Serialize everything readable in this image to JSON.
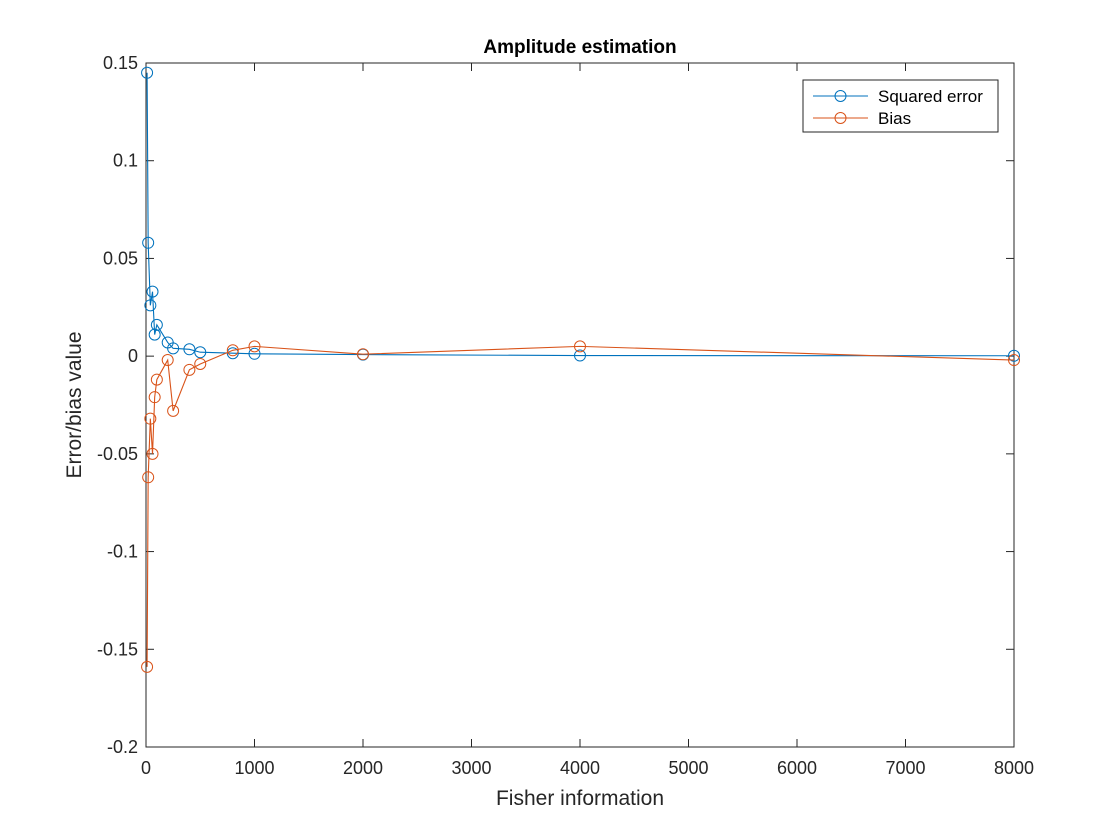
{
  "chart_data": {
    "type": "line",
    "title": "Amplitude estimation",
    "xlabel": "Fisher information",
    "ylabel": "Error/bias value",
    "xlim": [
      0,
      8000
    ],
    "ylim": [
      -0.2,
      0.15
    ],
    "xticks": [
      0,
      1000,
      2000,
      3000,
      4000,
      5000,
      6000,
      7000,
      8000
    ],
    "xtick_labels": [
      "0",
      "1000",
      "2000",
      "3000",
      "4000",
      "5000",
      "6000",
      "7000",
      "8000"
    ],
    "yticks": [
      -0.2,
      -0.15,
      -0.1,
      -0.05,
      0,
      0.05,
      0.1,
      0.15
    ],
    "ytick_labels": [
      "-0.2",
      "-0.15",
      "-0.1",
      "-0.05",
      "0",
      "0.05",
      "0.1",
      "0.15"
    ],
    "grid": false,
    "legend_position": "top-right",
    "marker": "circle-open",
    "series": [
      {
        "name": "Squared error",
        "color": "#0072BD",
        "x": [
          10,
          20,
          40,
          60,
          80,
          100,
          200,
          250,
          400,
          500,
          800,
          1000,
          2000,
          4000,
          8000
        ],
        "y": [
          0.145,
          0.058,
          0.026,
          0.033,
          0.011,
          0.016,
          0.007,
          0.004,
          0.0035,
          0.002,
          0.0015,
          0.0012,
          0.0008,
          0.0003,
          0.0002
        ]
      },
      {
        "name": "Bias",
        "color": "#D95319",
        "x": [
          10,
          20,
          40,
          60,
          80,
          100,
          200,
          250,
          400,
          500,
          800,
          1000,
          2000,
          4000,
          8000
        ],
        "y": [
          -0.159,
          -0.062,
          -0.032,
          -0.05,
          -0.021,
          -0.012,
          -0.002,
          -0.028,
          -0.007,
          -0.004,
          0.003,
          0.005,
          0.001,
          0.005,
          -0.002
        ]
      }
    ]
  }
}
